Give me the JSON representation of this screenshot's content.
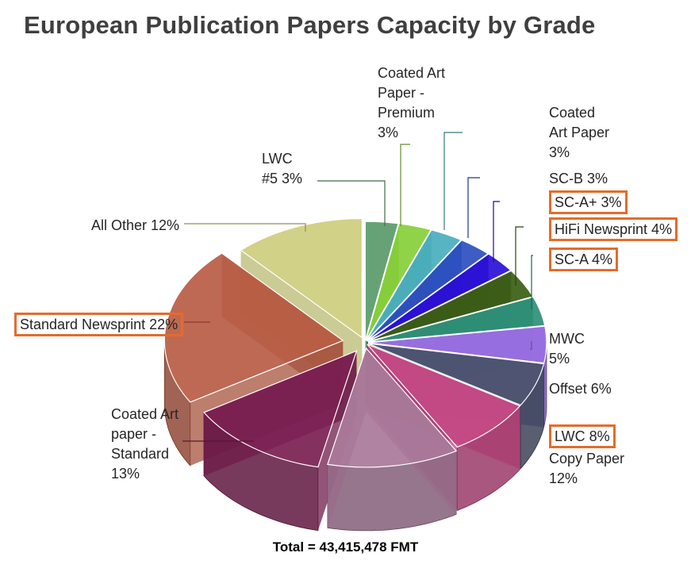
{
  "title": "European Publication Papers Capacity by Grade",
  "total": "Total = 43,415,478 FMT",
  "chart_data": {
    "type": "pie",
    "title": "European Publication Papers Capacity by Grade",
    "slices": [
      {
        "name": "LWC #5",
        "value": 3,
        "label": "LWC\n#5 3%",
        "color": "#5a9a6a"
      },
      {
        "name": "Coated Art Paper - Premium",
        "value": 3,
        "label": "Coated Art\nPaper -\nPremium\n3%",
        "color": "#86cf3a"
      },
      {
        "name": "Coated Art Paper",
        "value": 3,
        "label": "Coated\nArt Paper\n3%",
        "color": "#49aebd"
      },
      {
        "name": "SC-B",
        "value": 3,
        "label": "SC-B 3%",
        "color": "#2d4fbf"
      },
      {
        "name": "SC-A+",
        "value": 3,
        "label": "SC-A+ 3%",
        "color": "#2a10d6",
        "highlight": true
      },
      {
        "name": "HiFi Newsprint",
        "value": 4,
        "label": "HiFi Newsprint 4%",
        "color": "#3b5e14",
        "highlight": true
      },
      {
        "name": "SC-A",
        "value": 4,
        "label": "SC-A 4%",
        "color": "#2f8f77",
        "highlight": true
      },
      {
        "name": "MWC",
        "value": 5,
        "label": "MWC\n5%",
        "color": "#9a6fe3"
      },
      {
        "name": "Offset",
        "value": 6,
        "label": "Offset 6%",
        "color": "#4d5570"
      },
      {
        "name": "LWC",
        "value": 8,
        "label": "LWC 8%",
        "color": "#c64a84",
        "highlight": true
      },
      {
        "name": "Copy Paper",
        "value": 12,
        "label": "Copy Paper\n12%",
        "color": "#a9789a"
      },
      {
        "name": "Coated Art paper - Standard",
        "value": 13,
        "label": "Coated Art\npaper -\nStandard\n13%",
        "color": "#7b1f52"
      },
      {
        "name": "Standard Newsprint",
        "value": 22,
        "label": "Standard Newsprint 22%",
        "color": "#b95c44",
        "highlight": true
      },
      {
        "name": "All Other",
        "value": 12,
        "label": "All Other 12%",
        "color": "#cdcd7e"
      }
    ]
  }
}
